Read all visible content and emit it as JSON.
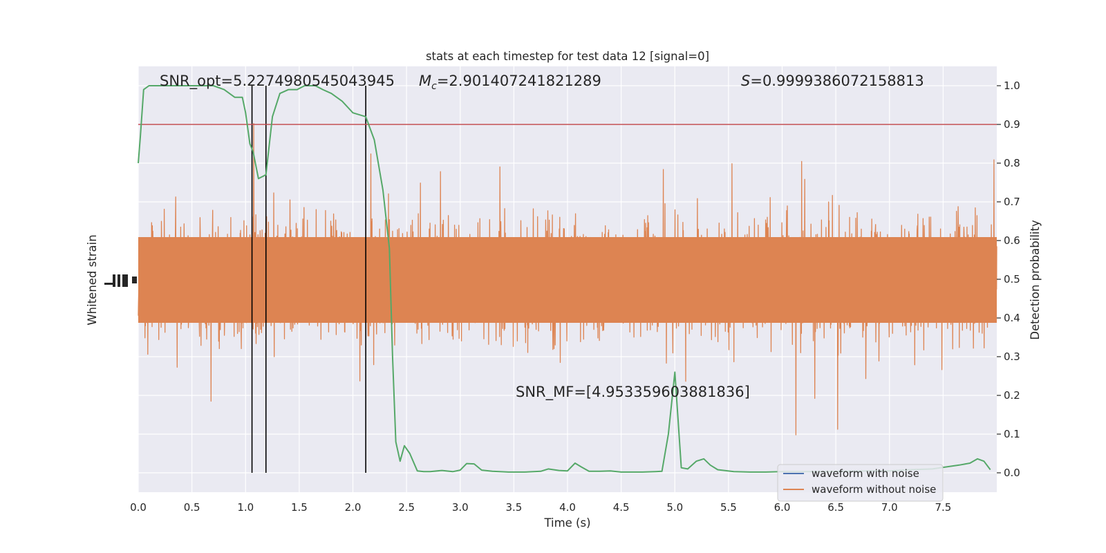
{
  "chart_data": {
    "type": "line",
    "title": "stats at each timestep for test data 12 [signal=0]",
    "xlabel": "Time (s)",
    "ylabel_left": "Whitened strain",
    "ylabel_right": "Detection probability",
    "xlim": [
      0.0,
      8.0
    ],
    "ylim_right": [
      -0.05,
      1.05
    ],
    "x_ticks": [
      "0.0",
      "0.5",
      "1.0",
      "1.5",
      "2.0",
      "2.5",
      "3.0",
      "3.5",
      "4.0",
      "4.5",
      "5.0",
      "5.5",
      "6.0",
      "6.5",
      "7.0",
      "7.5"
    ],
    "y_ticks_right": [
      "0.0",
      "0.1",
      "0.2",
      "0.3",
      "0.4",
      "0.5",
      "0.6",
      "0.7",
      "0.8",
      "0.9",
      "1.0"
    ],
    "grid": true,
    "legend_position": "bottom-right",
    "annotations": {
      "snr_opt": "SNR_opt=5.2274980545043945",
      "mc_symbol": "M",
      "mc_sub": "c",
      "mc_value": "=2.901407241821289",
      "s_symbol": "S",
      "s_value": "=0.9999386072158813",
      "snr_mf": "SNR_MF=[4.953359603881836]"
    },
    "threshold": 0.9,
    "vertical_lines_x": [
      1.06,
      1.19,
      2.12
    ],
    "series": [
      {
        "name": "waveform with noise",
        "color": "#4c72b0"
      },
      {
        "name": "waveform without noise",
        "color": "#dd8452"
      }
    ],
    "detection_probability": {
      "color": "#55a868",
      "x": [
        0.0,
        0.02,
        0.05,
        0.1,
        0.15,
        0.25,
        0.4,
        0.5,
        0.6,
        0.7,
        0.8,
        0.9,
        0.97,
        1.0,
        1.04,
        1.07,
        1.12,
        1.19,
        1.25,
        1.32,
        1.4,
        1.48,
        1.55,
        1.65,
        1.72,
        1.8,
        1.9,
        2.0,
        2.12,
        2.2,
        2.28,
        2.34,
        2.37,
        2.4,
        2.44,
        2.48,
        2.53,
        2.6,
        2.66,
        2.72,
        2.83,
        2.93,
        3.0,
        3.06,
        3.13,
        3.2,
        3.3,
        3.45,
        3.6,
        3.75,
        3.82,
        3.92,
        4.0,
        4.07,
        4.13,
        4.2,
        4.3,
        4.4,
        4.5,
        4.6,
        4.7,
        4.82,
        4.88,
        4.94,
        5.0,
        5.06,
        5.12,
        5.2,
        5.27,
        5.33,
        5.4,
        5.55,
        5.7,
        5.85,
        6.0,
        6.2,
        6.4,
        6.6,
        6.8,
        7.0,
        7.2,
        7.4,
        7.55,
        7.65,
        7.75,
        7.82,
        7.88,
        7.94
      ],
      "y": [
        0.8,
        0.87,
        0.99,
        1.0,
        1.0,
        1.0,
        1.0,
        1.0,
        1.0,
        1.0,
        0.99,
        0.97,
        0.97,
        0.93,
        0.85,
        0.83,
        0.76,
        0.77,
        0.92,
        0.98,
        0.99,
        0.99,
        1.0,
        1.0,
        0.99,
        0.98,
        0.96,
        0.93,
        0.92,
        0.86,
        0.73,
        0.58,
        0.3,
        0.08,
        0.03,
        0.07,
        0.05,
        0.005,
        0.003,
        0.003,
        0.006,
        0.003,
        0.007,
        0.024,
        0.023,
        0.007,
        0.004,
        0.002,
        0.002,
        0.004,
        0.01,
        0.006,
        0.005,
        0.025,
        0.015,
        0.004,
        0.004,
        0.005,
        0.002,
        0.002,
        0.002,
        0.003,
        0.004,
        0.1,
        0.26,
        0.013,
        0.01,
        0.03,
        0.036,
        0.02,
        0.008,
        0.003,
        0.002,
        0.002,
        0.003,
        0.003,
        0.003,
        0.004,
        0.005,
        0.005,
        0.008,
        0.01,
        0.016,
        0.02,
        0.025,
        0.036,
        0.03,
        0.008
      ]
    }
  }
}
